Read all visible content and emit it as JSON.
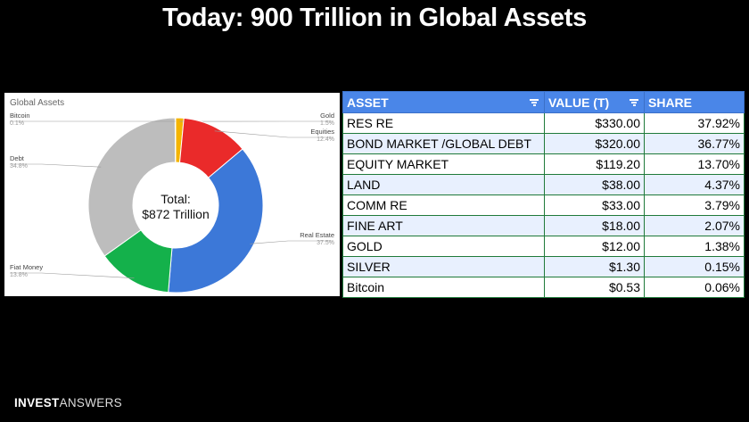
{
  "title": "Today: 900 Trillion in Global Assets",
  "brand": {
    "bold": "INVEST",
    "light": "ANSWERS"
  },
  "chart_data": {
    "type": "pie",
    "title": "Global Assets",
    "center_label": [
      "Total:",
      "$872 Trillion"
    ],
    "slices": [
      {
        "name": "Gold",
        "pct_label": "1.5%",
        "value": 1.5,
        "color": "#f4b400"
      },
      {
        "name": "Equities",
        "pct_label": "12.4%",
        "value": 12.4,
        "color": "#ea2a2a"
      },
      {
        "name": "Real Estate",
        "pct_label": "37.5%",
        "value": 37.5,
        "color": "#3c78d8"
      },
      {
        "name": "Fiat Money",
        "pct_label": "13.8%",
        "value": 13.8,
        "color": "#14b14b"
      },
      {
        "name": "Debt",
        "pct_label": "34.8%",
        "value": 34.8,
        "color": "#bdbdbd"
      },
      {
        "name": "Bitcoin",
        "pct_label": "0.1%",
        "value": 0.1,
        "color": "#e07b39"
      }
    ]
  },
  "table": {
    "headers": [
      "ASSET",
      "VALUE (T)",
      "SHARE"
    ],
    "rows": [
      [
        "RES RE",
        "$330.00",
        "37.92%"
      ],
      [
        "BOND MARKET /GLOBAL DEBT",
        "$320.00",
        "36.77%"
      ],
      [
        "EQUITY MARKET",
        "$119.20",
        "13.70%"
      ],
      [
        "LAND",
        "$38.00",
        "4.37%"
      ],
      [
        "COMM RE",
        "$33.00",
        "3.79%"
      ],
      [
        "FINE ART",
        "$18.00",
        "2.07%"
      ],
      [
        "GOLD",
        "$12.00",
        "1.38%"
      ],
      [
        "SILVER",
        "$1.30",
        "0.15%"
      ],
      [
        "Bitcoin",
        "$0.53",
        "0.06%"
      ]
    ]
  }
}
